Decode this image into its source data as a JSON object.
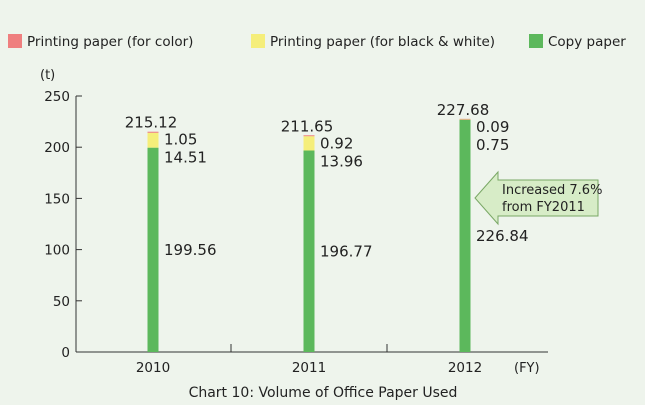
{
  "colors": {
    "color_paper": "#ef7f7f",
    "bw_paper": "#f5ee7a",
    "copy_paper": "#5cb85c",
    "background": "#eef4ec",
    "callout_fill": "#d7ecc7",
    "callout_stroke": "#7aa866"
  },
  "chart_data": {
    "type": "bar",
    "stacked": true,
    "title": "Chart 10: Volume of Office Paper Used",
    "y_unit": "(t)",
    "x_unit": "(FY)",
    "ylim": [
      0,
      250
    ],
    "yticks": [
      0,
      50,
      100,
      150,
      200,
      250
    ],
    "grid": false,
    "legend_position": "top",
    "categories": [
      "2010",
      "2011",
      "2012"
    ],
    "series": [
      {
        "name": "Printing paper (for color)",
        "values": [
          1.05,
          0.92,
          0.09
        ]
      },
      {
        "name": "Printing paper (for black & white)",
        "values": [
          14.51,
          13.96,
          0.75
        ]
      },
      {
        "name": "Copy paper",
        "values": [
          199.56,
          196.77,
          226.84
        ]
      }
    ],
    "totals": [
      "215.12",
      "211.65",
      "227.68"
    ],
    "value_labels": {
      "color": [
        "1.05",
        "0.92",
        "0.09"
      ],
      "bw": [
        "14.51",
        "13.96",
        "0.75"
      ],
      "copy": [
        "199.56",
        "196.77",
        "226.84"
      ]
    },
    "annotation": {
      "line1": "Increased 7.6%",
      "line2": "from FY2011"
    }
  }
}
